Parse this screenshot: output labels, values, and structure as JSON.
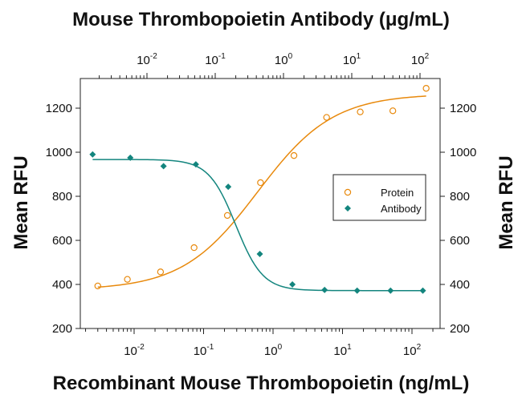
{
  "chart_data": {
    "type": "scatter",
    "title_top": "Mouse Thrombopoietin Antibody (μg/mL)",
    "xlabel_bottom": "Recombinant Mouse Thrombopoietin (ng/mL)",
    "ylabel_left": "Mean RFU",
    "ylabel_right": "Mean RFU",
    "x_scale": "log",
    "x_bottom_ticks": [
      {
        "value": 0.01,
        "base": "10",
        "exp": "-2"
      },
      {
        "value": 0.1,
        "base": "10",
        "exp": "-1"
      },
      {
        "value": 1,
        "base": "10",
        "exp": "0"
      },
      {
        "value": 10,
        "base": "10",
        "exp": "1"
      },
      {
        "value": 100,
        "base": "10",
        "exp": "2"
      }
    ],
    "x_top_ticks": [
      {
        "value": 0.01,
        "base": "10",
        "exp": "-2"
      },
      {
        "value": 0.1,
        "base": "10",
        "exp": "-1"
      },
      {
        "value": 1,
        "base": "10",
        "exp": "0"
      },
      {
        "value": 10,
        "base": "10",
        "exp": "1"
      },
      {
        "value": 100,
        "base": "10",
        "exp": "2"
      }
    ],
    "ylim": [
      200,
      1300
    ],
    "y_ticks": [
      "200",
      "400",
      "600",
      "800",
      "1000",
      "1200"
    ],
    "grid": false,
    "legend_position": "right",
    "series": [
      {
        "name": "Protein",
        "axis": "bottom",
        "marker": "open-circle",
        "color": "#E8890C",
        "points": [
          {
            "x": 0.003,
            "y": 393
          },
          {
            "x": 0.008,
            "y": 423
          },
          {
            "x": 0.024,
            "y": 457
          },
          {
            "x": 0.073,
            "y": 567
          },
          {
            "x": 0.22,
            "y": 713
          },
          {
            "x": 0.66,
            "y": 862
          },
          {
            "x": 2.0,
            "y": 985
          },
          {
            "x": 5.9,
            "y": 1158
          },
          {
            "x": 18,
            "y": 1183
          },
          {
            "x": 53,
            "y": 1188
          },
          {
            "x": 160,
            "y": 1290
          }
        ],
        "fit": {
          "bottom": 375,
          "top": 1265,
          "ec50": 0.6,
          "hill": 0.8,
          "x_min": 0.003,
          "x_max": 160
        }
      },
      {
        "name": "Antibody",
        "axis": "top",
        "marker": "filled-diamond",
        "color": "#13857E",
        "points": [
          {
            "x": 0.0016,
            "y": 990
          },
          {
            "x": 0.0057,
            "y": 975
          },
          {
            "x": 0.0175,
            "y": 937
          },
          {
            "x": 0.052,
            "y": 945
          },
          {
            "x": 0.155,
            "y": 843
          },
          {
            "x": 0.45,
            "y": 538
          },
          {
            "x": 1.35,
            "y": 400
          },
          {
            "x": 4.0,
            "y": 375
          },
          {
            "x": 12,
            "y": 372
          },
          {
            "x": 37,
            "y": 372
          },
          {
            "x": 110,
            "y": 372
          }
        ],
        "fit": {
          "bottom": 372,
          "top": 967,
          "ic50": 0.2,
          "hill": 2.2,
          "x_min": 0.0016,
          "x_max": 110
        }
      }
    ]
  }
}
